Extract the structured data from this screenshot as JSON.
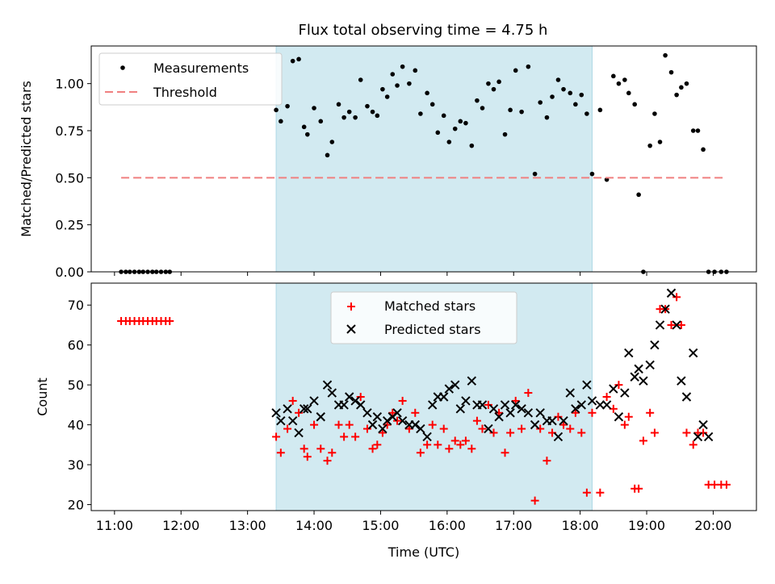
{
  "title": "Flux total observing time = 4.75 h",
  "chart_data": [
    {
      "type": "scatter",
      "ylabel": "Matched/Predicted stars",
      "xlabel": "",
      "xlim": [
        10.65,
        20.65
      ],
      "ylim": [
        0,
        1.2
      ],
      "yticks": [
        0,
        0.25,
        0.5,
        0.75,
        1.0
      ],
      "ytick_labels": [
        "0.00",
        "0.25",
        "0.50",
        "0.75",
        "1.00"
      ],
      "legend_position": "top-left",
      "shaded_interval": [
        13.43,
        18.18
      ],
      "shade_color": "#add8e6",
      "series": [
        {
          "name": "Measurements",
          "color": "#000000",
          "marker": "dot",
          "x": [
            11.1,
            11.17,
            11.23,
            11.3,
            11.37,
            11.43,
            11.5,
            11.57,
            11.63,
            11.7,
            11.77,
            11.83,
            13.43,
            13.5,
            13.6,
            13.68,
            13.77,
            13.85,
            13.9,
            14.0,
            14.1,
            14.2,
            14.27,
            14.37,
            14.45,
            14.53,
            14.62,
            14.7,
            14.8,
            14.88,
            14.95,
            15.03,
            15.1,
            15.18,
            15.25,
            15.33,
            15.43,
            15.52,
            15.6,
            15.7,
            15.78,
            15.86,
            15.95,
            16.03,
            16.12,
            16.2,
            16.28,
            16.37,
            16.45,
            16.53,
            16.62,
            16.7,
            16.78,
            16.87,
            16.95,
            17.03,
            17.12,
            17.22,
            17.32,
            17.4,
            17.5,
            17.58,
            17.67,
            17.75,
            17.85,
            17.93,
            18.02,
            18.1,
            18.18,
            18.3,
            18.4,
            18.5,
            18.58,
            18.67,
            18.73,
            18.82,
            18.88,
            18.95,
            19.05,
            19.12,
            19.2,
            19.28,
            19.37,
            19.45,
            19.52,
            19.6,
            19.7,
            19.77,
            19.85,
            19.93,
            20.02,
            20.12,
            20.2
          ],
          "y": [
            0,
            0,
            0,
            0,
            0,
            0,
            0,
            0,
            0,
            0,
            0,
            0,
            0.86,
            0.8,
            0.88,
            1.12,
            1.13,
            0.77,
            0.73,
            0.87,
            0.8,
            0.62,
            0.69,
            0.89,
            0.82,
            0.85,
            0.82,
            1.02,
            0.88,
            0.85,
            0.83,
            0.97,
            0.93,
            1.05,
            0.99,
            1.09,
            1.0,
            1.07,
            0.84,
            0.95,
            0.89,
            0.74,
            0.83,
            0.69,
            0.76,
            0.8,
            0.79,
            0.67,
            0.91,
            0.87,
            1.0,
            0.97,
            1.01,
            0.73,
            0.86,
            1.07,
            0.85,
            1.09,
            0.52,
            0.9,
            0.82,
            0.93,
            1.02,
            0.97,
            0.95,
            0.89,
            0.94,
            0.84,
            0.52,
            0.86,
            0.49,
            1.04,
            1.0,
            1.02,
            0.95,
            0.89,
            0.41,
            0.0,
            0.67,
            0.84,
            0.69,
            1.15,
            1.06,
            0.94,
            0.98,
            1.0,
            0.75,
            0.75,
            0.65,
            0.0,
            0.0,
            0.0,
            0.0
          ]
        },
        {
          "name": "Threshold",
          "color": "#f08080",
          "style": "dashed",
          "x": [
            11.1,
            20.2
          ],
          "y": [
            0.5,
            0.5
          ]
        }
      ]
    },
    {
      "type": "scatter",
      "ylabel": "Count",
      "xlabel": "Time (UTC)",
      "xlim": [
        10.65,
        20.65
      ],
      "ylim": [
        18.5,
        75.5
      ],
      "yticks": [
        20,
        30,
        40,
        50,
        60,
        70
      ],
      "ytick_labels": [
        "20",
        "30",
        "40",
        "50",
        "60",
        "70"
      ],
      "xticks": [
        11,
        12,
        13,
        14,
        15,
        16,
        17,
        18,
        19,
        20
      ],
      "xtick_labels": [
        "11:00",
        "12:00",
        "13:00",
        "14:00",
        "15:00",
        "16:00",
        "17:00",
        "18:00",
        "19:00",
        "20:00"
      ],
      "legend_position": "top-center",
      "shaded_interval": [
        13.43,
        18.18
      ],
      "shade_color": "#add8e6",
      "series": [
        {
          "name": "Matched stars",
          "color": "#ff0000",
          "marker": "plus",
          "x": [
            11.1,
            11.17,
            11.23,
            11.3,
            11.37,
            11.43,
            11.5,
            11.57,
            11.63,
            11.7,
            11.77,
            11.83,
            13.43,
            13.5,
            13.6,
            13.68,
            13.77,
            13.85,
            13.9,
            14.0,
            14.1,
            14.2,
            14.27,
            14.37,
            14.45,
            14.53,
            14.62,
            14.7,
            14.8,
            14.88,
            14.95,
            15.03,
            15.1,
            15.18,
            15.25,
            15.33,
            15.43,
            15.52,
            15.6,
            15.7,
            15.78,
            15.86,
            15.95,
            16.03,
            16.12,
            16.2,
            16.28,
            16.37,
            16.45,
            16.53,
            16.62,
            16.7,
            16.78,
            16.87,
            16.95,
            17.03,
            17.12,
            17.22,
            17.32,
            17.4,
            17.5,
            17.58,
            17.67,
            17.75,
            17.85,
            17.93,
            18.02,
            18.1,
            18.18,
            18.3,
            18.4,
            18.5,
            18.58,
            18.67,
            18.73,
            18.82,
            18.88,
            18.95,
            19.05,
            19.12,
            19.2,
            19.28,
            19.37,
            19.45,
            19.52,
            19.6,
            19.7,
            19.77,
            19.85,
            19.93,
            20.02,
            20.12,
            20.2
          ],
          "y": [
            66,
            66,
            66,
            66,
            66,
            66,
            66,
            66,
            66,
            66,
            66,
            66,
            37,
            33,
            39,
            46,
            43,
            34,
            32,
            40,
            34,
            31,
            33,
            40,
            37,
            40,
            37,
            47,
            39,
            34,
            35,
            38,
            40,
            43,
            41,
            46,
            39,
            43,
            33,
            35,
            40,
            35,
            39,
            34,
            36,
            35,
            36,
            34,
            41,
            39,
            45,
            38,
            43,
            33,
            38,
            46,
            39,
            48,
            21,
            39,
            31,
            38,
            42,
            40,
            39,
            43,
            38,
            23,
            43,
            23,
            47,
            44,
            50,
            40,
            42,
            24,
            24,
            36,
            43,
            38,
            69,
            69,
            65,
            72,
            65,
            38,
            35,
            38,
            38,
            25,
            25,
            25,
            25
          ]
        },
        {
          "name": "Predicted stars",
          "color": "#000000",
          "marker": "cross",
          "x": [
            13.43,
            13.5,
            13.6,
            13.68,
            13.77,
            13.85,
            13.9,
            14.0,
            14.1,
            14.2,
            14.27,
            14.37,
            14.45,
            14.53,
            14.62,
            14.7,
            14.8,
            14.88,
            14.95,
            15.03,
            15.1,
            15.18,
            15.25,
            15.33,
            15.43,
            15.52,
            15.6,
            15.7,
            15.78,
            15.86,
            15.95,
            16.03,
            16.12,
            16.2,
            16.28,
            16.37,
            16.45,
            16.53,
            16.62,
            16.7,
            16.78,
            16.87,
            16.95,
            17.03,
            17.12,
            17.22,
            17.32,
            17.4,
            17.5,
            17.58,
            17.67,
            17.75,
            17.85,
            17.93,
            18.02,
            18.1,
            18.18,
            18.3,
            18.4,
            18.5,
            18.58,
            18.67,
            18.73,
            18.82,
            18.88,
            18.95,
            19.05,
            19.12,
            19.2,
            19.28,
            19.37,
            19.45,
            19.52,
            19.6,
            19.7,
            19.77,
            19.85,
            19.93
          ],
          "y": [
            43,
            41,
            44,
            41,
            38,
            44,
            44,
            46,
            42,
            50,
            48,
            45,
            45,
            47,
            46,
            45,
            43,
            40,
            42,
            39,
            41,
            42,
            43,
            41,
            40,
            40,
            39,
            37,
            45,
            47,
            47,
            49,
            50,
            44,
            46,
            51,
            45,
            45,
            39,
            44,
            42,
            45,
            43,
            45,
            44,
            43,
            40,
            43,
            41,
            41,
            37,
            41,
            48,
            44,
            45,
            50,
            46,
            45,
            45,
            49,
            42,
            48,
            58,
            52,
            54,
            51,
            55,
            60,
            65,
            69,
            73,
            65,
            51,
            47,
            58,
            37,
            40,
            37
          ]
        }
      ]
    }
  ]
}
